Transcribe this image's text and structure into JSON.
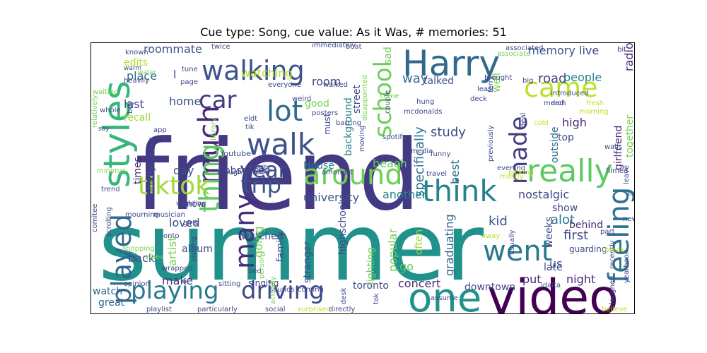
{
  "figure": {
    "title": "Cue type: Song, cue value: As it Was, # memories: 51"
  },
  "wordcloud": {
    "words": [
      {
        "text": "summer",
        "color": "#21918c"
      },
      {
        "text": "friend",
        "color": "#443983"
      },
      {
        "text": "video",
        "color": "#440154"
      },
      {
        "text": "one",
        "color": "#21918c"
      },
      {
        "text": "Harry",
        "color": "#31688e"
      },
      {
        "text": "styles",
        "color": "#35b779"
      },
      {
        "text": "walking",
        "color": "#3b528b"
      },
      {
        "text": "walk",
        "color": "#3b528b"
      },
      {
        "text": "lot",
        "color": "#31688e"
      },
      {
        "text": "car",
        "color": "#443983"
      },
      {
        "text": "came",
        "color": "#bddf26"
      },
      {
        "text": "school",
        "color": "#6ece58"
      },
      {
        "text": "much",
        "color": "#482878"
      },
      {
        "text": "thing",
        "color": "#5ec962"
      },
      {
        "text": "year",
        "color": "#3e4989"
      },
      {
        "text": "around",
        "color": "#6ece58"
      },
      {
        "text": "think",
        "color": "#26828e"
      },
      {
        "text": "really",
        "color": "#5ec962"
      },
      {
        "text": "tiktok",
        "color": "#9fda3a"
      },
      {
        "text": "trip",
        "color": "#3b528b"
      },
      {
        "text": "many",
        "color": "#472d7b"
      },
      {
        "text": "made",
        "color": "#443983"
      },
      {
        "text": "went",
        "color": "#2a788e"
      },
      {
        "text": "feeling",
        "color": "#2c728e"
      },
      {
        "text": "played",
        "color": "#31688e"
      },
      {
        "text": "playing",
        "color": "#2a788e"
      },
      {
        "text": "driving",
        "color": "#3e4989"
      },
      {
        "text": "roommate",
        "color": "#3b528b"
      },
      {
        "text": "edits",
        "color": "#b5de2b"
      },
      {
        "text": "place",
        "color": "#31688e"
      },
      {
        "text": "last",
        "color": "#3e4989"
      },
      {
        "text": "recall",
        "color": "#9fda3a"
      },
      {
        "text": "home",
        "color": "#3b528b"
      },
      {
        "text": "watching",
        "color": "#bddf26"
      },
      {
        "text": "room",
        "color": "#3e4989"
      },
      {
        "text": "good",
        "color": "#7ad151"
      },
      {
        "text": "way",
        "color": "#31688e"
      },
      {
        "text": "sad",
        "color": "#6ece58"
      },
      {
        "text": "memory",
        "color": "#3b528b"
      },
      {
        "text": "live",
        "color": "#3e4989"
      },
      {
        "text": "road",
        "color": "#443983"
      },
      {
        "text": "people",
        "color": "#26828e"
      },
      {
        "text": "radio",
        "color": "#482878"
      },
      {
        "text": "high",
        "color": "#482878"
      },
      {
        "text": "top",
        "color": "#3e4989"
      },
      {
        "text": "together",
        "color": "#7ad151"
      },
      {
        "text": "study",
        "color": "#3e4989"
      },
      {
        "text": "specifically",
        "color": "#2c728e"
      },
      {
        "text": "best",
        "color": "#31688e"
      },
      {
        "text": "outside",
        "color": "#31688e"
      },
      {
        "text": "girlfriend",
        "color": "#481f70"
      },
      {
        "text": "talked",
        "color": "#3b528b"
      },
      {
        "text": "well",
        "color": "#7ad151"
      },
      {
        "text": "times",
        "color": "#482878"
      },
      {
        "text": "initially",
        "color": "#3e4989"
      },
      {
        "text": "day",
        "color": "#3b528b"
      },
      {
        "text": "obsessed",
        "color": "#3e4989"
      },
      {
        "text": "House",
        "color": "#26828e"
      },
      {
        "text": "beach",
        "color": "#5ec962"
      },
      {
        "text": "university",
        "color": "#3b528b"
      },
      {
        "text": "another",
        "color": "#26828e"
      },
      {
        "text": "nostalgic",
        "color": "#3e4989"
      },
      {
        "text": "show",
        "color": "#3e4989"
      },
      {
        "text": "alot",
        "color": "#2a788e"
      },
      {
        "text": "first",
        "color": "#3e4989"
      },
      {
        "text": "behind",
        "color": "#482878"
      },
      {
        "text": "night",
        "color": "#482878"
      },
      {
        "text": "late",
        "color": "#3e4989"
      },
      {
        "text": "us",
        "color": "#3e4989"
      },
      {
        "text": "put",
        "color": "#482878"
      },
      {
        "text": "kid",
        "color": "#3b528b"
      },
      {
        "text": "weeks",
        "color": "#3e4989"
      },
      {
        "text": "graduating",
        "color": "#31688e"
      },
      {
        "text": "popular",
        "color": "#6ece58"
      },
      {
        "text": "often",
        "color": "#a0da39"
      },
      {
        "text": "go",
        "color": "#5ec962"
      },
      {
        "text": "concert",
        "color": "#482878"
      },
      {
        "text": "downtown",
        "color": "#3e4989"
      },
      {
        "text": "toronto",
        "color": "#3e4989"
      },
      {
        "text": "highschool",
        "color": "#3e4989"
      },
      {
        "text": "stranger",
        "color": "#3e4989"
      },
      {
        "text": "lighting",
        "color": "#6ece58"
      },
      {
        "text": "background",
        "color": "#26828e"
      },
      {
        "text": "street",
        "color": "#3e4989"
      },
      {
        "text": "watched",
        "color": "#3e4989"
      },
      {
        "text": "going",
        "color": "#7ad151"
      },
      {
        "text": "family",
        "color": "#3e4989"
      },
      {
        "text": "artist",
        "color": "#7ad151"
      },
      {
        "text": "loved",
        "color": "#3e4989"
      },
      {
        "text": "album",
        "color": "#3e4989"
      },
      {
        "text": "back",
        "color": "#3b528b"
      },
      {
        "text": "make",
        "color": "#443983"
      },
      {
        "text": "watch",
        "color": "#31688e"
      },
      {
        "text": "great",
        "color": "#31688e"
      },
      {
        "text": "singing",
        "color": "#3e4989"
      },
      {
        "text": "know",
        "color": "#3e4989"
      },
      {
        "text": "wedding",
        "color": "#3e4989"
      },
      {
        "text": "mourning",
        "color": "#3e4989"
      },
      {
        "text": "musician",
        "color": "#3e4989"
      },
      {
        "text": "must",
        "color": "#3e4989"
      },
      {
        "text": "guarding",
        "color": "#3e4989"
      },
      {
        "text": "l",
        "color": "#3e4989"
      },
      {
        "text": "Youtube",
        "color": "#3e4989"
      },
      {
        "text": "Vancouver",
        "color": "#3e4989"
      },
      {
        "text": "known",
        "color": "#3e4989"
      },
      {
        "text": "warm",
        "color": "#3e4989"
      },
      {
        "text": "heavily",
        "color": "#3e4989"
      },
      {
        "text": "relatively",
        "color": "#7ad151"
      },
      {
        "text": "waiting",
        "color": "#7ad151"
      },
      {
        "text": "whole",
        "color": "#3e4989"
      },
      {
        "text": "buy",
        "color": "#3e4989"
      },
      {
        "text": "say",
        "color": "#3e4989"
      },
      {
        "text": "minimal",
        "color": "#7ad151"
      },
      {
        "text": "trend",
        "color": "#3e4989"
      },
      {
        "text": "comitee",
        "color": "#3e4989"
      },
      {
        "text": "scrolling",
        "color": "#3e4989"
      },
      {
        "text": "shopping",
        "color": "#7ad151"
      },
      {
        "text": "opinion",
        "color": "#3e4989"
      },
      {
        "text": "playlist",
        "color": "#3e4989"
      },
      {
        "text": "particularly",
        "color": "#3e4989"
      },
      {
        "text": "social",
        "color": "#3e4989"
      },
      {
        "text": "surprised",
        "color": "#bddf26"
      },
      {
        "text": "directly",
        "color": "#3e4989"
      },
      {
        "text": "believe",
        "color": "#bddf26"
      },
      {
        "text": "laughed",
        "color": "#3e4989"
      },
      {
        "text": "yearbook",
        "color": "#3e4989"
      },
      {
        "text": "recently",
        "color": "#3e4989"
      },
      {
        "text": "new",
        "color": "#3e4989"
      },
      {
        "text": "air",
        "color": "#3e4989"
      },
      {
        "text": "leave",
        "color": "#3e4989"
      },
      {
        "text": "filmed",
        "color": "#3e4989"
      },
      {
        "text": "walls",
        "color": "#3e4989"
      },
      {
        "text": "morning",
        "color": "#bddf26"
      },
      {
        "text": "fresh",
        "color": "#bddf26"
      },
      {
        "text": "merch",
        "color": "#3e4989"
      },
      {
        "text": "ldaita",
        "color": "#3e4989"
      },
      {
        "text": "introduced",
        "color": "#3e4989"
      },
      {
        "text": "dad",
        "color": "#3e4989"
      },
      {
        "text": "deal",
        "color": "#3e4989"
      },
      {
        "text": "big",
        "color": "#3e4989"
      },
      {
        "text": "bit",
        "color": "#3e4989"
      },
      {
        "text": "associated",
        "color": "#3e4989"
      },
      {
        "text": "associate",
        "color": "#7ad151"
      },
      {
        "text": "brought",
        "color": "#3e4989"
      },
      {
        "text": "least",
        "color": "#3e4989"
      },
      {
        "text": "ferry",
        "color": "#3e4989"
      },
      {
        "text": "deck",
        "color": "#3e4989"
      },
      {
        "text": "hung",
        "color": "#3e4989"
      },
      {
        "text": "mcdonalds",
        "color": "#3e4989"
      },
      {
        "text": "couple",
        "color": "#3e4989"
      },
      {
        "text": "come",
        "color": "#7ad151"
      },
      {
        "text": "disappointed",
        "color": "#7ad151"
      },
      {
        "text": "spotify",
        "color": "#3e4989"
      },
      {
        "text": "funny",
        "color": "#3e4989"
      },
      {
        "text": "media",
        "color": "#3e4989"
      },
      {
        "text": "travel",
        "color": "#3e4989"
      },
      {
        "text": "mostly",
        "color": "#bddf26"
      },
      {
        "text": "evening",
        "color": "#3e4989"
      },
      {
        "text": "version",
        "color": "#3e4989"
      },
      {
        "text": "though",
        "color": "#3e4989"
      },
      {
        "text": "amongst",
        "color": "#3e4989"
      },
      {
        "text": "eldt",
        "color": "#3e4989"
      },
      {
        "text": "tik",
        "color": "#3e4989"
      },
      {
        "text": "app",
        "color": "#3e4989"
      },
      {
        "text": "barring",
        "color": "#3e4989"
      },
      {
        "text": "posters",
        "color": "#3e4989"
      },
      {
        "text": "weird",
        "color": "#3e4989"
      },
      {
        "text": "walked",
        "color": "#3e4989"
      },
      {
        "text": "everyone",
        "color": "#3e4989"
      },
      {
        "text": "page",
        "color": "#3e4989"
      },
      {
        "text": "tune",
        "color": "#3e4989"
      },
      {
        "text": "twice",
        "color": "#3e4989"
      },
      {
        "text": "immediately",
        "color": "#3e4989"
      },
      {
        "text": "boat",
        "color": "#3e4989"
      },
      {
        "text": "traffic",
        "color": "#3e4989"
      },
      {
        "text": "moving",
        "color": "#3e4989"
      },
      {
        "text": "previously",
        "color": "#3e4989"
      },
      {
        "text": "picking",
        "color": "#bddf26"
      },
      {
        "text": "cold",
        "color": "#bddf26"
      },
      {
        "text": "library",
        "color": "#7ad151"
      },
      {
        "text": "girls",
        "color": "#3e4989"
      },
      {
        "text": "onto",
        "color": "#3e4989"
      },
      {
        "text": "vibes",
        "color": "#7ad151"
      },
      {
        "text": "wrapped",
        "color": "#3e4989"
      },
      {
        "text": "visiting",
        "color": "#3e4989"
      },
      {
        "text": "sitting",
        "color": "#3e4989"
      },
      {
        "text": "bed",
        "color": "#3e4989"
      },
      {
        "text": "person",
        "color": "#7ad151"
      },
      {
        "text": "sounds",
        "color": "#3e4989"
      },
      {
        "text": "coming",
        "color": "#3e4989"
      },
      {
        "text": "actually",
        "color": "#7ad151"
      },
      {
        "text": "desk",
        "color": "#3e4989"
      },
      {
        "text": "tok",
        "color": "#3e4989"
      },
      {
        "text": "assume",
        "color": "#3e4989"
      },
      {
        "text": "usually",
        "color": "#3e4989"
      },
      {
        "text": "away",
        "color": "#bddf26"
      },
      {
        "text": "break",
        "color": "#bddf26"
      },
      {
        "text": "part",
        "color": "#3e4989"
      },
      {
        "text": "water",
        "color": "#7ad151"
      }
    ]
  }
}
